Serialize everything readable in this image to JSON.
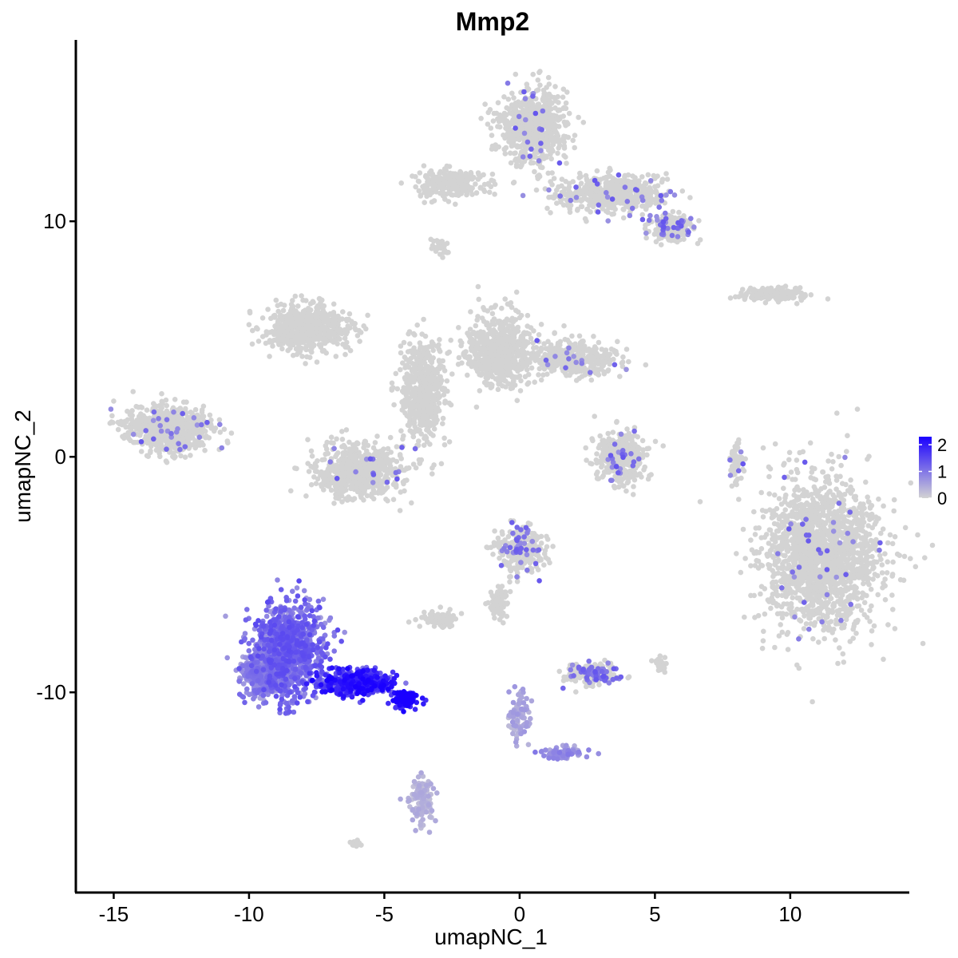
{
  "chart_data": {
    "type": "scatter",
    "title": "Mmp2",
    "xlabel": "umapNC_1",
    "ylabel": "umapNC_2",
    "xlim": [
      -16.4,
      14.4
    ],
    "ylim": [
      -18.5,
      17.7
    ],
    "x_ticks": [
      -15,
      -10,
      -5,
      0,
      5,
      10
    ],
    "y_ticks": [
      -10,
      0,
      10
    ],
    "x_tick_labels": [
      "-15",
      "-10",
      "-5",
      "0",
      "5",
      "10"
    ],
    "y_tick_labels": [
      "-10",
      "0",
      "10"
    ],
    "grid": false,
    "legend": {
      "placement": "right",
      "min": 0,
      "max": 2.3,
      "ticks": [
        0,
        1,
        2
      ],
      "tick_labels": [
        "0",
        "1",
        "2"
      ],
      "color_low": "#d3d3d3",
      "color_high": "#1a00ff"
    },
    "clusters": [
      {
        "cx": 11.2,
        "cy": -4.1,
        "sx": 1.8,
        "sy": 2.6,
        "n": 1800,
        "expr": 0.01
      },
      {
        "cx": 0.5,
        "cy": 14.0,
        "sx": 1.0,
        "sy": 1.3,
        "n": 700,
        "expr": 0.01
      },
      {
        "cx": 3.5,
        "cy": 11.2,
        "sx": 1.6,
        "sy": 0.6,
        "n": 500,
        "expr": 0.02
      },
      {
        "cx": -2.5,
        "cy": 11.6,
        "sx": 1.0,
        "sy": 0.5,
        "n": 250,
        "expr": 0.0
      },
      {
        "cx": 5.6,
        "cy": 9.8,
        "sx": 0.7,
        "sy": 0.5,
        "n": 220,
        "expr": 0.05
      },
      {
        "cx": -7.8,
        "cy": 5.5,
        "sx": 1.3,
        "sy": 0.8,
        "n": 600,
        "expr": 0.0
      },
      {
        "cx": -3.6,
        "cy": 2.8,
        "sx": 0.7,
        "sy": 1.8,
        "n": 550,
        "expr": 0.0
      },
      {
        "cx": -0.7,
        "cy": 4.5,
        "sx": 1.0,
        "sy": 1.2,
        "n": 700,
        "expr": 0.0
      },
      {
        "cx": 2.0,
        "cy": 4.2,
        "sx": 1.4,
        "sy": 0.6,
        "n": 400,
        "expr": 0.01
      },
      {
        "cx": -5.9,
        "cy": -0.6,
        "sx": 1.3,
        "sy": 0.9,
        "n": 650,
        "expr": 0.01
      },
      {
        "cx": -13.0,
        "cy": 1.2,
        "sx": 1.3,
        "sy": 0.8,
        "n": 700,
        "expr": 0.01
      },
      {
        "cx": 3.8,
        "cy": 0.0,
        "sx": 0.8,
        "sy": 0.9,
        "n": 350,
        "expr": 0.02
      },
      {
        "cx": 9.4,
        "cy": 6.9,
        "sx": 1.2,
        "sy": 0.25,
        "n": 160,
        "expr": 0.0
      },
      {
        "cx": 8.0,
        "cy": -0.2,
        "sx": 0.2,
        "sy": 0.9,
        "n": 70,
        "expr": 0.02
      },
      {
        "cx": 0.0,
        "cy": -3.9,
        "sx": 0.7,
        "sy": 0.8,
        "n": 300,
        "expr": 0.05
      },
      {
        "cx": -3.0,
        "cy": -6.9,
        "sx": 0.5,
        "sy": 0.25,
        "n": 90,
        "expr": 0.0
      },
      {
        "cx": -0.8,
        "cy": -6.2,
        "sx": 0.3,
        "sy": 0.6,
        "n": 70,
        "expr": 0.0
      },
      {
        "cx": 2.6,
        "cy": -9.2,
        "sx": 0.8,
        "sy": 0.35,
        "n": 200,
        "expr": 0.08
      },
      {
        "cx": -8.6,
        "cy": -8.2,
        "sx": 1.1,
        "sy": 1.6,
        "n": 1100,
        "expr": 0.45
      },
      {
        "cx": -9.5,
        "cy": -9.2,
        "sx": 0.7,
        "sy": 0.7,
        "n": 400,
        "expr": 0.35
      },
      {
        "cx": -6.0,
        "cy": -9.6,
        "sx": 1.1,
        "sy": 0.45,
        "n": 500,
        "expr": 0.7
      },
      {
        "cx": -4.2,
        "cy": -10.3,
        "sx": 0.4,
        "sy": 0.3,
        "n": 150,
        "expr": 0.85
      },
      {
        "cx": -3.6,
        "cy": -14.6,
        "sx": 0.35,
        "sy": 0.9,
        "n": 120,
        "expr": 0.15
      },
      {
        "cx": 0.0,
        "cy": -11.0,
        "sx": 0.3,
        "sy": 0.9,
        "n": 90,
        "expr": 0.2
      },
      {
        "cx": 1.6,
        "cy": -12.6,
        "sx": 0.7,
        "sy": 0.2,
        "n": 90,
        "expr": 0.3
      },
      {
        "cx": 5.2,
        "cy": -8.8,
        "sx": 0.2,
        "sy": 0.3,
        "n": 40,
        "expr": 0.0
      },
      {
        "cx": -6.1,
        "cy": -16.4,
        "sx": 0.15,
        "sy": 0.1,
        "n": 20,
        "expr": 0.0
      },
      {
        "cx": -2.9,
        "cy": 8.9,
        "sx": 0.3,
        "sy": 0.3,
        "n": 30,
        "expr": 0.0
      }
    ]
  }
}
